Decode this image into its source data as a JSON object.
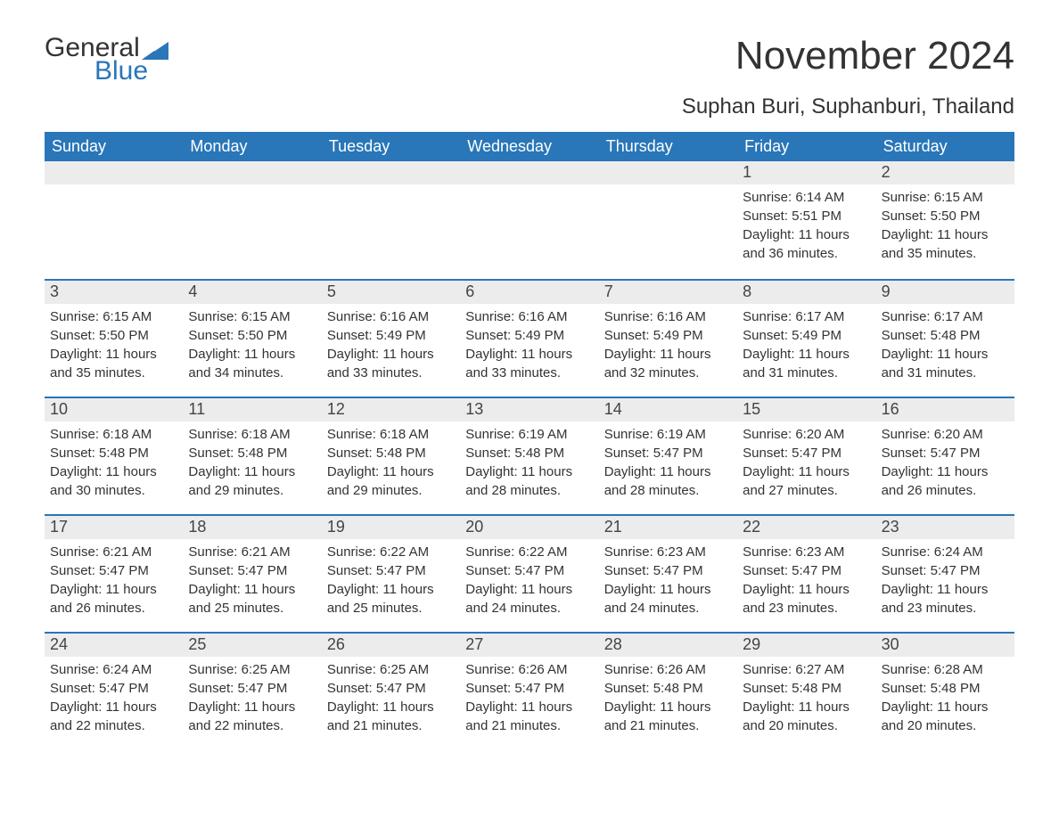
{
  "colors": {
    "header_bg": "#2976b8",
    "header_text": "#ffffff",
    "daynum_bg": "#ececec",
    "row_border": "#2976b8",
    "text": "#333333",
    "logo_general": "#333333",
    "logo_blue": "#2976b8",
    "page_bg": "#ffffff"
  },
  "logo": {
    "general": "General",
    "blue": "Blue"
  },
  "title": "November 2024",
  "location": "Suphan Buri, Suphanburi, Thailand",
  "day_names": [
    "Sunday",
    "Monday",
    "Tuesday",
    "Wednesday",
    "Thursday",
    "Friday",
    "Saturday"
  ],
  "weeks": [
    [
      null,
      null,
      null,
      null,
      null,
      {
        "n": "1",
        "sunrise": "Sunrise: 6:14 AM",
        "sunset": "Sunset: 5:51 PM",
        "day1": "Daylight: 11 hours",
        "day2": "and 36 minutes."
      },
      {
        "n": "2",
        "sunrise": "Sunrise: 6:15 AM",
        "sunset": "Sunset: 5:50 PM",
        "day1": "Daylight: 11 hours",
        "day2": "and 35 minutes."
      }
    ],
    [
      {
        "n": "3",
        "sunrise": "Sunrise: 6:15 AM",
        "sunset": "Sunset: 5:50 PM",
        "day1": "Daylight: 11 hours",
        "day2": "and 35 minutes."
      },
      {
        "n": "4",
        "sunrise": "Sunrise: 6:15 AM",
        "sunset": "Sunset: 5:50 PM",
        "day1": "Daylight: 11 hours",
        "day2": "and 34 minutes."
      },
      {
        "n": "5",
        "sunrise": "Sunrise: 6:16 AM",
        "sunset": "Sunset: 5:49 PM",
        "day1": "Daylight: 11 hours",
        "day2": "and 33 minutes."
      },
      {
        "n": "6",
        "sunrise": "Sunrise: 6:16 AM",
        "sunset": "Sunset: 5:49 PM",
        "day1": "Daylight: 11 hours",
        "day2": "and 33 minutes."
      },
      {
        "n": "7",
        "sunrise": "Sunrise: 6:16 AM",
        "sunset": "Sunset: 5:49 PM",
        "day1": "Daylight: 11 hours",
        "day2": "and 32 minutes."
      },
      {
        "n": "8",
        "sunrise": "Sunrise: 6:17 AM",
        "sunset": "Sunset: 5:49 PM",
        "day1": "Daylight: 11 hours",
        "day2": "and 31 minutes."
      },
      {
        "n": "9",
        "sunrise": "Sunrise: 6:17 AM",
        "sunset": "Sunset: 5:48 PM",
        "day1": "Daylight: 11 hours",
        "day2": "and 31 minutes."
      }
    ],
    [
      {
        "n": "10",
        "sunrise": "Sunrise: 6:18 AM",
        "sunset": "Sunset: 5:48 PM",
        "day1": "Daylight: 11 hours",
        "day2": "and 30 minutes."
      },
      {
        "n": "11",
        "sunrise": "Sunrise: 6:18 AM",
        "sunset": "Sunset: 5:48 PM",
        "day1": "Daylight: 11 hours",
        "day2": "and 29 minutes."
      },
      {
        "n": "12",
        "sunrise": "Sunrise: 6:18 AM",
        "sunset": "Sunset: 5:48 PM",
        "day1": "Daylight: 11 hours",
        "day2": "and 29 minutes."
      },
      {
        "n": "13",
        "sunrise": "Sunrise: 6:19 AM",
        "sunset": "Sunset: 5:48 PM",
        "day1": "Daylight: 11 hours",
        "day2": "and 28 minutes."
      },
      {
        "n": "14",
        "sunrise": "Sunrise: 6:19 AM",
        "sunset": "Sunset: 5:47 PM",
        "day1": "Daylight: 11 hours",
        "day2": "and 28 minutes."
      },
      {
        "n": "15",
        "sunrise": "Sunrise: 6:20 AM",
        "sunset": "Sunset: 5:47 PM",
        "day1": "Daylight: 11 hours",
        "day2": "and 27 minutes."
      },
      {
        "n": "16",
        "sunrise": "Sunrise: 6:20 AM",
        "sunset": "Sunset: 5:47 PM",
        "day1": "Daylight: 11 hours",
        "day2": "and 26 minutes."
      }
    ],
    [
      {
        "n": "17",
        "sunrise": "Sunrise: 6:21 AM",
        "sunset": "Sunset: 5:47 PM",
        "day1": "Daylight: 11 hours",
        "day2": "and 26 minutes."
      },
      {
        "n": "18",
        "sunrise": "Sunrise: 6:21 AM",
        "sunset": "Sunset: 5:47 PM",
        "day1": "Daylight: 11 hours",
        "day2": "and 25 minutes."
      },
      {
        "n": "19",
        "sunrise": "Sunrise: 6:22 AM",
        "sunset": "Sunset: 5:47 PM",
        "day1": "Daylight: 11 hours",
        "day2": "and 25 minutes."
      },
      {
        "n": "20",
        "sunrise": "Sunrise: 6:22 AM",
        "sunset": "Sunset: 5:47 PM",
        "day1": "Daylight: 11 hours",
        "day2": "and 24 minutes."
      },
      {
        "n": "21",
        "sunrise": "Sunrise: 6:23 AM",
        "sunset": "Sunset: 5:47 PM",
        "day1": "Daylight: 11 hours",
        "day2": "and 24 minutes."
      },
      {
        "n": "22",
        "sunrise": "Sunrise: 6:23 AM",
        "sunset": "Sunset: 5:47 PM",
        "day1": "Daylight: 11 hours",
        "day2": "and 23 minutes."
      },
      {
        "n": "23",
        "sunrise": "Sunrise: 6:24 AM",
        "sunset": "Sunset: 5:47 PM",
        "day1": "Daylight: 11 hours",
        "day2": "and 23 minutes."
      }
    ],
    [
      {
        "n": "24",
        "sunrise": "Sunrise: 6:24 AM",
        "sunset": "Sunset: 5:47 PM",
        "day1": "Daylight: 11 hours",
        "day2": "and 22 minutes."
      },
      {
        "n": "25",
        "sunrise": "Sunrise: 6:25 AM",
        "sunset": "Sunset: 5:47 PM",
        "day1": "Daylight: 11 hours",
        "day2": "and 22 minutes."
      },
      {
        "n": "26",
        "sunrise": "Sunrise: 6:25 AM",
        "sunset": "Sunset: 5:47 PM",
        "day1": "Daylight: 11 hours",
        "day2": "and 21 minutes."
      },
      {
        "n": "27",
        "sunrise": "Sunrise: 6:26 AM",
        "sunset": "Sunset: 5:47 PM",
        "day1": "Daylight: 11 hours",
        "day2": "and 21 minutes."
      },
      {
        "n": "28",
        "sunrise": "Sunrise: 6:26 AM",
        "sunset": "Sunset: 5:48 PM",
        "day1": "Daylight: 11 hours",
        "day2": "and 21 minutes."
      },
      {
        "n": "29",
        "sunrise": "Sunrise: 6:27 AM",
        "sunset": "Sunset: 5:48 PM",
        "day1": "Daylight: 11 hours",
        "day2": "and 20 minutes."
      },
      {
        "n": "30",
        "sunrise": "Sunrise: 6:28 AM",
        "sunset": "Sunset: 5:48 PM",
        "day1": "Daylight: 11 hours",
        "day2": "and 20 minutes."
      }
    ]
  ]
}
